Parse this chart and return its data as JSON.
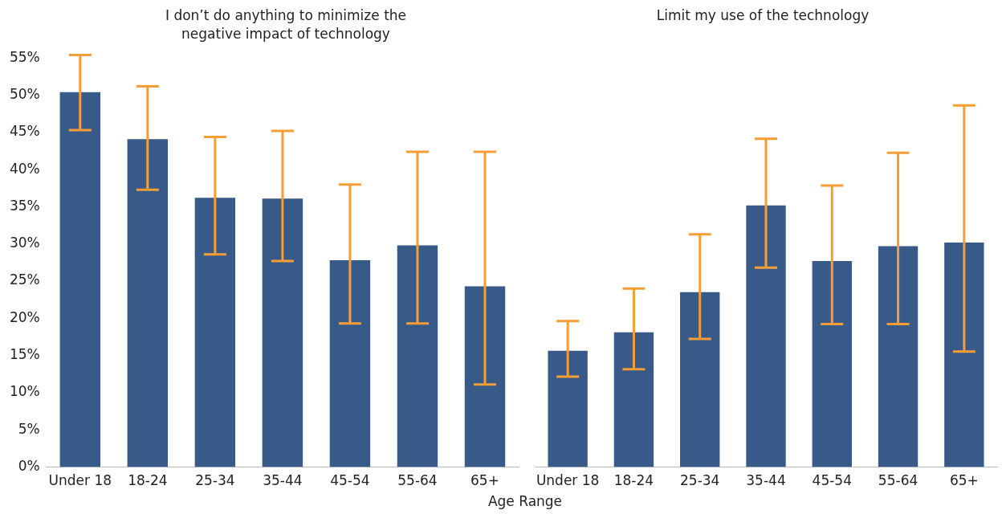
{
  "chart_data": [
    {
      "type": "bar",
      "title": "I don’t do anything to minimize the negative impact of technology",
      "xlabel": "Age Range",
      "categories": [
        "Under 18",
        "18-24",
        "25-34",
        "35-44",
        "45-54",
        "55-64",
        "65+"
      ],
      "series": [
        {
          "color": "#385a88",
          "values": [
            50.4,
            44.1,
            36.2,
            36.1,
            27.8,
            29.8,
            24.3
          ],
          "errors": [
            [
              45.3,
              55.4
            ],
            [
              37.3,
              51.2
            ],
            [
              28.6,
              44.4
            ],
            [
              27.7,
              45.2
            ],
            [
              19.3,
              38.0
            ],
            [
              19.3,
              42.4
            ],
            [
              11.1,
              42.4
            ]
          ]
        }
      ],
      "ylim": [
        0,
        55
      ],
      "yticks": [
        {
          "value": 0,
          "label": "0%"
        },
        {
          "value": 5,
          "label": "5%"
        },
        {
          "value": 10,
          "label": "10%"
        },
        {
          "value": 15,
          "label": "15%"
        },
        {
          "value": 20,
          "label": "20%"
        },
        {
          "value": 25,
          "label": "25%"
        },
        {
          "value": 30,
          "label": "30%"
        },
        {
          "value": 35,
          "label": "35%"
        },
        {
          "value": 40,
          "label": "40%"
        },
        {
          "value": 45,
          "label": "45%"
        },
        {
          "value": 50,
          "label": "50%"
        },
        {
          "value": 55,
          "label": "55%"
        }
      ],
      "grid": false,
      "legend": false
    },
    {
      "type": "bar",
      "title": "Limit my use of the technology",
      "categories": [
        "Under 18",
        "18-24",
        "25-34",
        "35-44",
        "45-54",
        "55-64",
        "65+"
      ],
      "series": [
        {
          "color": "#385a88",
          "values": [
            15.7,
            18.2,
            23.6,
            35.3,
            27.8,
            29.8,
            30.3
          ],
          "errors": [
            [
              12.2,
              19.7
            ],
            [
              13.2,
              24.1
            ],
            [
              17.3,
              31.4
            ],
            [
              26.9,
              44.3
            ],
            [
              19.3,
              38.0
            ],
            [
              19.3,
              42.4
            ],
            [
              15.6,
              48.8
            ]
          ]
        }
      ],
      "ylim": [
        0,
        55
      ],
      "grid": false,
      "legend": false,
      "tick_labels": "x"
    }
  ]
}
